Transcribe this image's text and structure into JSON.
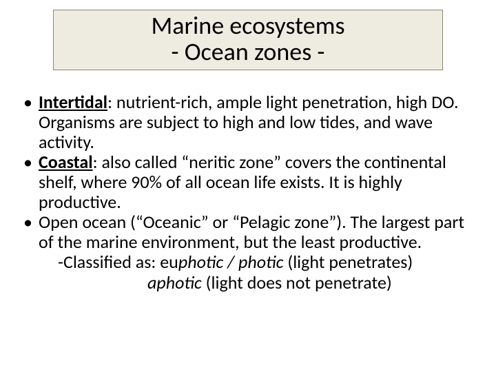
{
  "colors": {
    "slide_bg": "#ffffff",
    "title_bg": "#eeece1",
    "title_border": "#8a8572",
    "text": "#000000"
  },
  "typography": {
    "title_fontsize": 36,
    "body_fontsize": 26,
    "font_family": "Calibri"
  },
  "title": {
    "line1": "Marine ecosystems",
    "line2": "- Ocean zones -"
  },
  "bullets": [
    {
      "term": "Intertidal",
      "rest": ": nutrient-rich, ample light penetration, high DO. Organisms are subject to high and low tides, and wave activity."
    },
    {
      "term": "Coastal",
      "rest": ": also called “neritic zone” covers the continental shelf, where 90% of all ocean life exists. It is highly productive."
    },
    {
      "term_plain": "Open ocean (“Oceanic” or “Pelagic zone”). The largest part of the marine environment, but the least productive."
    }
  ],
  "subclass": {
    "line1_prefix": "-Classified as: eu",
    "line1_italic": "photic / photic ",
    "line1_suffix": "(light penetrates)",
    "line2_italic": "aphotic ",
    "line2_suffix": "(light does not penetrate)"
  }
}
